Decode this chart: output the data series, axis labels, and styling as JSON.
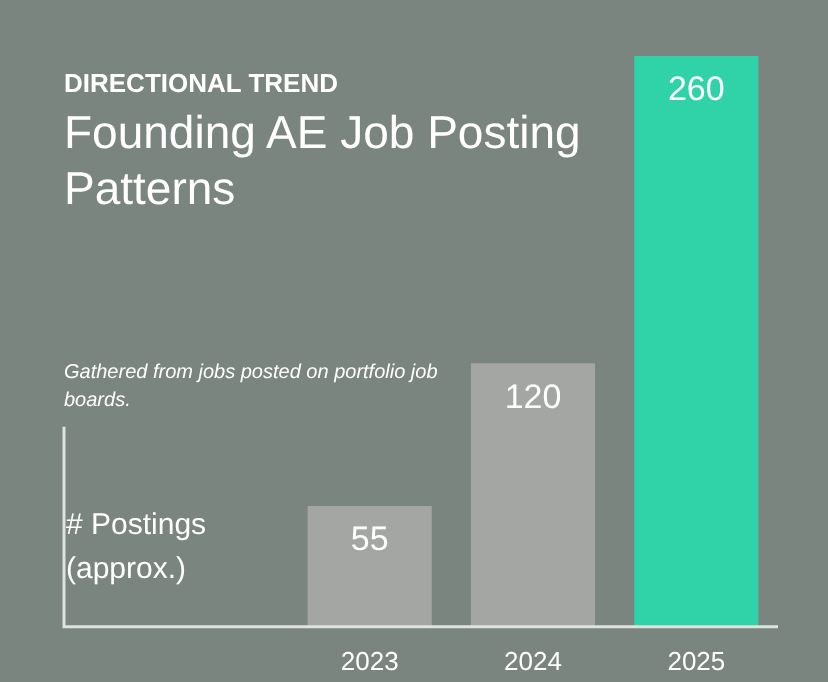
{
  "chart_data": {
    "type": "bar",
    "title": "Founding AE Job Posting Patterns",
    "subtitle": "Gathered from jobs posted on portfolio job boards.",
    "annotations": [
      "DIRECTIONAL TREND"
    ],
    "ylabel": "# Postings (approx.)",
    "categories": [
      "2023",
      "2024",
      "2025"
    ],
    "values": [
      55,
      120,
      260
    ],
    "colors": [
      "#a3a6a3",
      "#a3a6a3",
      "#2fd3a7"
    ],
    "ylim": [
      0,
      260
    ],
    "tick_labels": "x",
    "grid": false,
    "data_labels": true,
    "legend": false
  }
}
